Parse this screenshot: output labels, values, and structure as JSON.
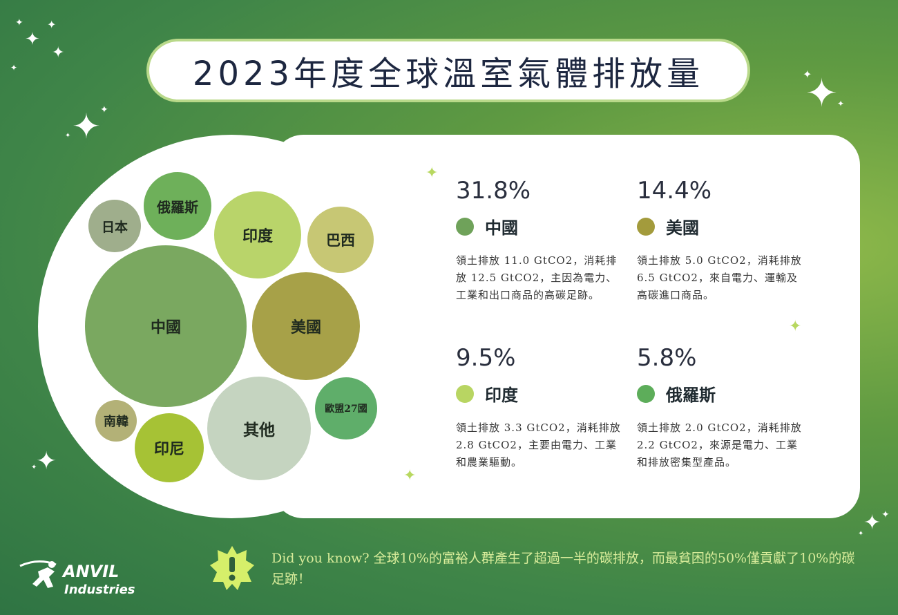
{
  "title": "2023年度全球溫室氣體排放量",
  "bubbles": [
    {
      "label": "日本",
      "color": "#9fae8c"
    },
    {
      "label": "俄羅斯",
      "color": "#6eb05a"
    },
    {
      "label": "印度",
      "color": "#b9d46a"
    },
    {
      "label": "巴西",
      "color": "#c7c774"
    },
    {
      "label": "中國",
      "color": "#7aa860"
    },
    {
      "label": "美國",
      "color": "#a7a148"
    },
    {
      "label": "南韓",
      "color": "#b3b177"
    },
    {
      "label": "印尼",
      "color": "#a6c235"
    },
    {
      "label": "其他",
      "color": "#c5d4c0"
    },
    {
      "label": "歐盟27國",
      "color": "#5fae6a"
    }
  ],
  "stats": [
    {
      "pct": "31.8%",
      "country": "中國",
      "color": "#6fa25a",
      "desc": "領土排放 11.0 GtCO2，消耗排放 12.5 GtCO2，主因為電力、工業和出口商品的高碳足跡。"
    },
    {
      "pct": "14.4%",
      "country": "美國",
      "color": "#a39b3c",
      "desc": "領土排放 5.0 GtCO2，消耗排放 6.5 GtCO2，來自電力、運輸及高碳進口商品。"
    },
    {
      "pct": "9.5%",
      "country": "印度",
      "color": "#b8d562",
      "desc": "領土排放 3.3 GtCO2，消耗排放 2.8 GtCO2，主要由電力、工業和農業驅動。"
    },
    {
      "pct": "5.8%",
      "country": "俄羅斯",
      "color": "#5dad5a",
      "desc": "領土排放 2.0 GtCO2，消耗排放 2.2 GtCO2，來源是電力、工業和排放密集型產品。"
    }
  ],
  "did_you_know": "Did you know? 全球10%的富裕人群產生了超過一半的碳排放，而最貧困的50%僅貢獻了10%的碳足跡！",
  "logo": {
    "line1": "ANVIL",
    "line2": "Industries"
  }
}
